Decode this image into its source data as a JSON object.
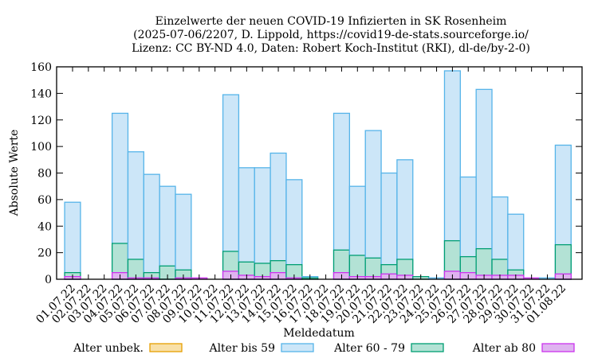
{
  "chart_data": {
    "type": "bar",
    "stacked": true,
    "title": [
      "Einzelwerte der neuen COVID-19 Infizierten in SK Rosenheim",
      "(2025-07-06/2207, D. Lippold, https://covid19-de-stats.sourceforge.io/",
      "Lizenz: CC BY-ND 4.0, Daten: Robert Koch-Institut (RKI), dl-de/by-2-0)"
    ],
    "xlabel": "Meldedatum",
    "ylabel": "Absolute Werte",
    "ylim": [
      0,
      160
    ],
    "yticks": [
      0,
      20,
      40,
      60,
      80,
      100,
      120,
      140,
      160
    ],
    "categories": [
      "01.07.22",
      "02.07.22",
      "03.07.22",
      "04.07.22",
      "05.07.22",
      "06.07.22",
      "07.07.22",
      "08.07.22",
      "09.07.22",
      "10.07.22",
      "11.07.22",
      "12.07.22",
      "13.07.22",
      "14.07.22",
      "15.07.22",
      "16.07.22",
      "17.07.22",
      "18.07.22",
      "19.07.22",
      "20.07.22",
      "21.07.22",
      "22.07.22",
      "23.07.22",
      "24.07.22",
      "25.07.22",
      "26.07.22",
      "27.07.22",
      "28.07.22",
      "29.07.22",
      "30.07.22",
      "31.07.22",
      "01.08.22"
    ],
    "series": [
      {
        "name": "Alter ab 80",
        "color": "#cc33ee",
        "fill": "#dfb3f0",
        "values": [
          2,
          0,
          0,
          5,
          1,
          1,
          0,
          1,
          1,
          0,
          6,
          3,
          2,
          5,
          1,
          0,
          0,
          5,
          2,
          2,
          4,
          3,
          0,
          0,
          6,
          5,
          3,
          3,
          3,
          1,
          0,
          4
        ]
      },
      {
        "name": "Alter 60 - 79",
        "color": "#009e73",
        "fill": "#b3e2d5",
        "values": [
          3,
          0,
          0,
          22,
          14,
          4,
          10,
          6,
          0,
          0,
          15,
          10,
          10,
          9,
          10,
          1,
          0,
          17,
          16,
          14,
          7,
          12,
          2,
          0,
          23,
          12,
          20,
          12,
          4,
          0,
          0,
          22
        ]
      },
      {
        "name": "Alter bis 59",
        "color": "#56b4e9",
        "fill": "#cce6f8",
        "values": [
          53,
          0,
          0,
          98,
          81,
          74,
          60,
          57,
          0,
          0,
          118,
          71,
          72,
          81,
          64,
          1,
          0,
          103,
          52,
          96,
          69,
          75,
          0,
          1,
          128,
          60,
          120,
          47,
          42,
          0,
          1,
          75
        ]
      },
      {
        "name": "Alter unbek.",
        "color": "#e69f00",
        "fill": "#f8e0a8",
        "values": [
          0,
          0,
          0,
          0,
          0,
          0,
          0,
          0,
          0,
          0,
          0,
          0,
          0,
          0,
          0,
          0,
          0,
          0,
          0,
          0,
          0,
          0,
          0,
          0,
          0,
          0,
          0,
          0,
          0,
          0,
          0,
          0
        ]
      }
    ],
    "legend": {
      "position": "bottom",
      "order": [
        "Alter unbek.",
        "Alter bis 59",
        "Alter 60 - 79",
        "Alter ab 80"
      ]
    },
    "grid": false
  }
}
